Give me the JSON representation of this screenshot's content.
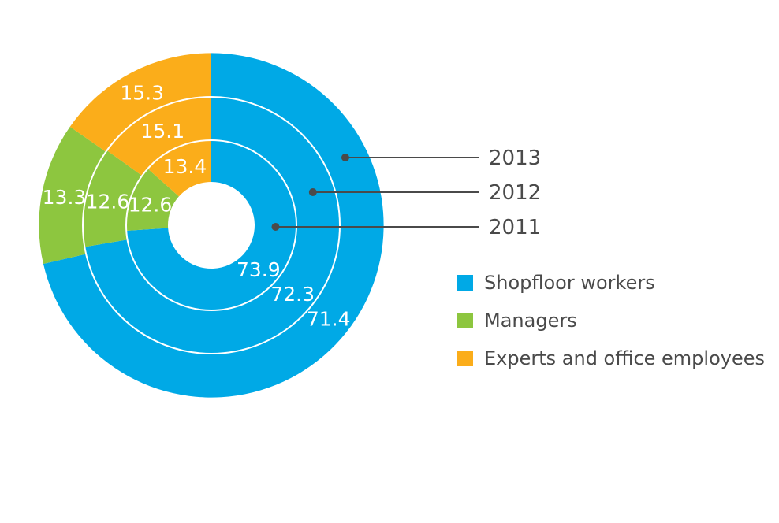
{
  "chart_data": {
    "type": "pie",
    "variant": "nested-donut",
    "title": "",
    "categories": [
      "Shopfloor workers",
      "Managers",
      "Experts and office employees"
    ],
    "colors": {
      "Shopfloor workers": "#00a9e6",
      "Managers": "#8dc63f",
      "Experts and office employees": "#fbad1a"
    },
    "rings": [
      {
        "name": "2011",
        "values": [
          73.9,
          12.6,
          13.4
        ],
        "labels": [
          "73.9",
          "12.6",
          "13.4"
        ]
      },
      {
        "name": "2012",
        "values": [
          72.3,
          12.6,
          15.1
        ],
        "labels": [
          "72.3",
          "12.6",
          "15.1"
        ]
      },
      {
        "name": "2013",
        "values": [
          71.4,
          13.3,
          15.3
        ],
        "labels": [
          "71.4",
          "13.3",
          "15.3"
        ]
      }
    ],
    "legend": [
      {
        "label": "Shopfloor workers",
        "color": "#00a9e6"
      },
      {
        "label": "Managers",
        "color": "#8dc63f"
      },
      {
        "label": "Experts and office employees",
        "color": "#fbad1a"
      }
    ],
    "legend_position": "right"
  }
}
